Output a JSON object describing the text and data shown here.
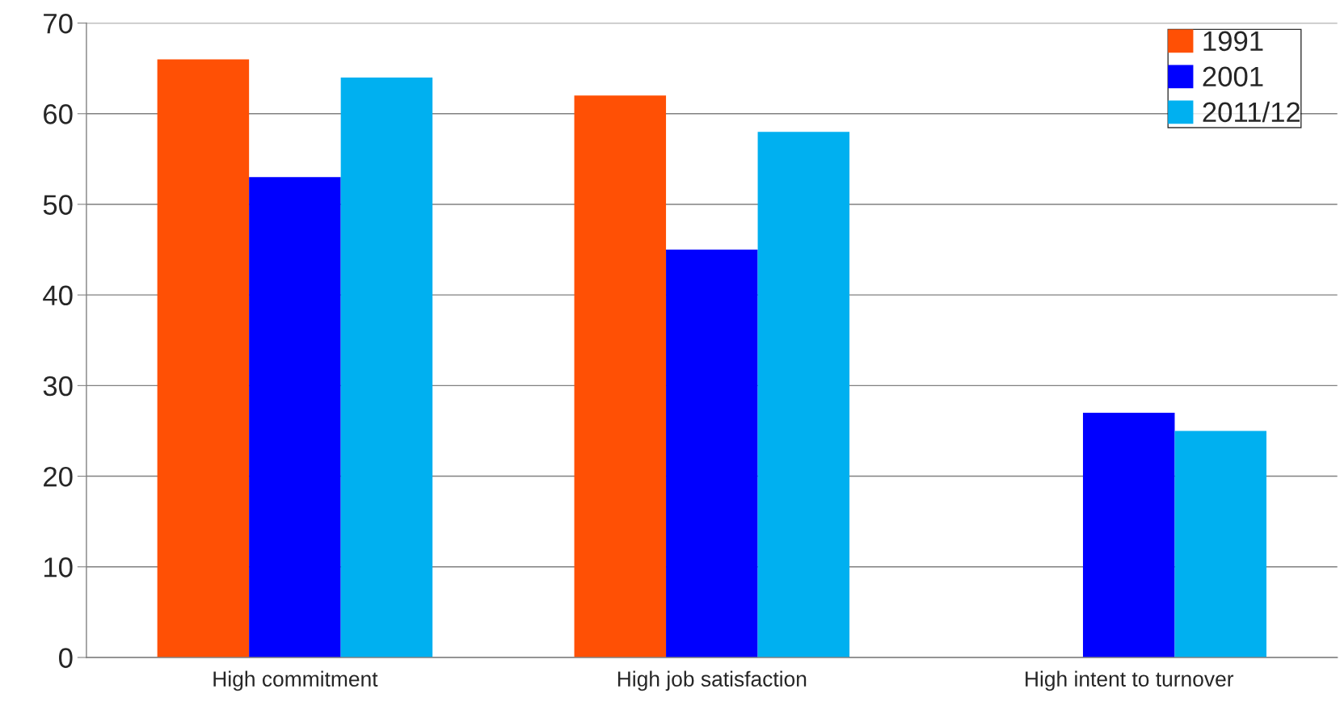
{
  "chart_data": {
    "type": "bar",
    "categories": [
      "High commitment",
      "High job satisfaction",
      "High intent to turnover"
    ],
    "series": [
      {
        "name": "1991",
        "color": "#ff5005",
        "values": [
          66,
          62,
          null
        ]
      },
      {
        "name": "2001",
        "color": "#0000ff",
        "values": [
          53,
          45,
          27
        ]
      },
      {
        "name": "2011/12",
        "color": "#00b0f0",
        "values": [
          64,
          58,
          25
        ]
      }
    ],
    "ylim": [
      0,
      70
    ],
    "yticks": [
      0,
      10,
      20,
      30,
      40,
      50,
      60,
      70
    ],
    "grid": "y",
    "legend": "top right"
  }
}
